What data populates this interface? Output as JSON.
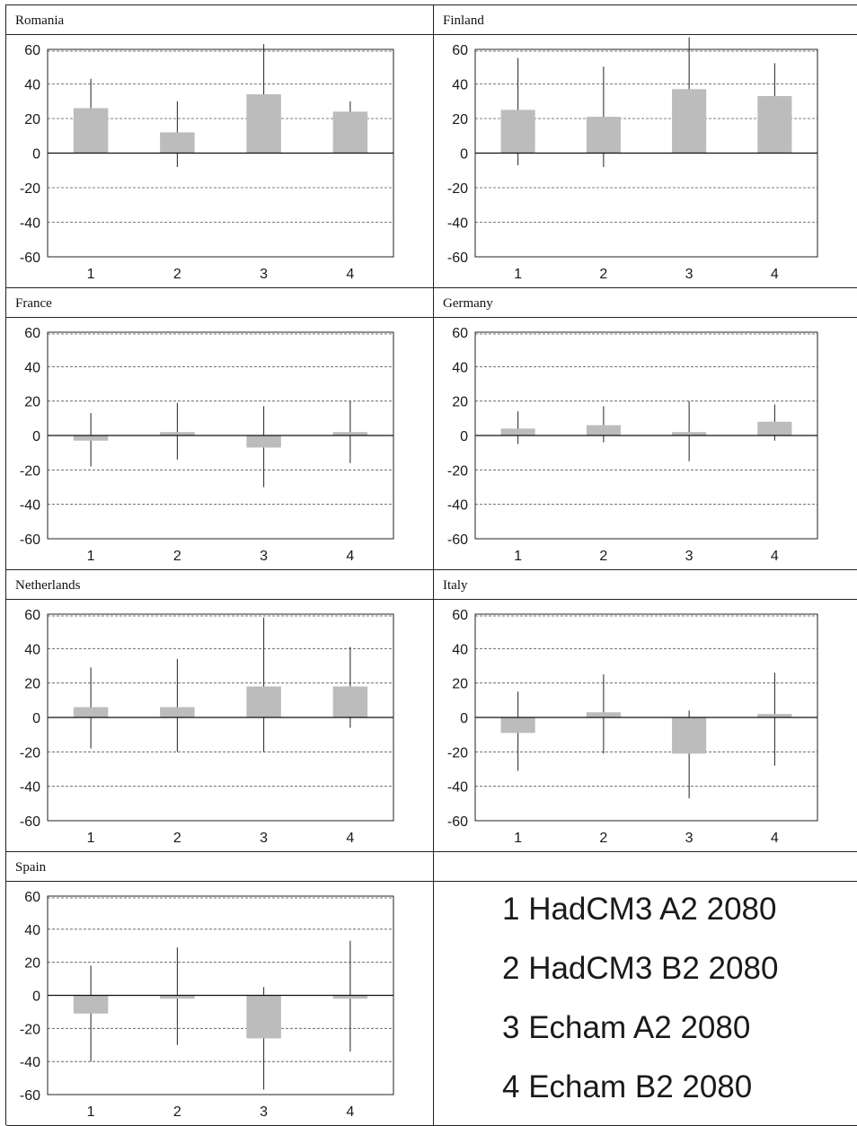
{
  "chart_data": [
    {
      "type": "bar",
      "title": "Romania",
      "categories": [
        "1",
        "2",
        "3",
        "4"
      ],
      "values": [
        26,
        12,
        34,
        24
      ],
      "error_low": [
        0,
        -8,
        0,
        0
      ],
      "error_high": [
        43,
        30,
        63,
        30
      ],
      "ylim": [
        -60,
        60
      ],
      "yticks": [
        60,
        40,
        20,
        0,
        -20,
        -40,
        -60
      ],
      "grid": true
    },
    {
      "type": "bar",
      "title": "Finland",
      "categories": [
        "1",
        "2",
        "3",
        "4"
      ],
      "values": [
        25,
        21,
        37,
        33
      ],
      "error_low": [
        -7,
        -8,
        0,
        0
      ],
      "error_high": [
        55,
        50,
        67,
        52
      ],
      "ylim": [
        -60,
        60
      ],
      "yticks": [
        60,
        40,
        20,
        0,
        -20,
        -40,
        -60
      ],
      "grid": true
    },
    {
      "type": "bar",
      "title": "France",
      "categories": [
        "1",
        "2",
        "3",
        "4"
      ],
      "values": [
        -3,
        2,
        -7,
        2
      ],
      "error_low": [
        -18,
        -14,
        -30,
        -16
      ],
      "error_high": [
        13,
        19,
        17,
        20
      ],
      "ylim": [
        -60,
        60
      ],
      "yticks": [
        60,
        40,
        20,
        0,
        -20,
        -40,
        -60
      ],
      "grid": true
    },
    {
      "type": "bar",
      "title": "Germany",
      "categories": [
        "1",
        "2",
        "3",
        "4"
      ],
      "values": [
        4,
        6,
        2,
        8
      ],
      "error_low": [
        -5,
        -4,
        -15,
        -3
      ],
      "error_high": [
        14,
        17,
        20,
        18
      ],
      "ylim": [
        -60,
        60
      ],
      "yticks": [
        60,
        40,
        20,
        0,
        -20,
        -40,
        -60
      ],
      "grid": true
    },
    {
      "type": "bar",
      "title": "Netherlands",
      "categories": [
        "1",
        "2",
        "3",
        "4"
      ],
      "values": [
        6,
        6,
        18,
        18
      ],
      "error_low": [
        -18,
        -20,
        -20,
        -6
      ],
      "error_high": [
        29,
        34,
        58,
        41
      ],
      "ylim": [
        -60,
        60
      ],
      "yticks": [
        60,
        40,
        20,
        0,
        -20,
        -40,
        -60
      ],
      "grid": true
    },
    {
      "type": "bar",
      "title": "Italy",
      "categories": [
        "1",
        "2",
        "3",
        "4"
      ],
      "values": [
        -9,
        3,
        -21,
        2
      ],
      "error_low": [
        -31,
        -21,
        -47,
        -28
      ],
      "error_high": [
        15,
        25,
        4,
        26
      ],
      "ylim": [
        -60,
        60
      ],
      "yticks": [
        60,
        40,
        20,
        0,
        -20,
        -40,
        -60
      ],
      "grid": true
    },
    {
      "type": "bar",
      "title": "Spain",
      "categories": [
        "1",
        "2",
        "3",
        "4"
      ],
      "values": [
        -11,
        -2,
        -26,
        -2
      ],
      "error_low": [
        -40,
        -30,
        -57,
        -34
      ],
      "error_high": [
        18,
        29,
        5,
        33
      ],
      "ylim": [
        -60,
        60
      ],
      "yticks": [
        60,
        40,
        20,
        0,
        -20,
        -40,
        -60
      ],
      "grid": true
    }
  ],
  "legend": [
    "1 HadCM3 A2 2080",
    "2 HadCM3 B2 2080",
    "3 Echam A2 2080",
    "4 Echam B2 2080"
  ],
  "colors": {
    "bar": "#bcbcbc",
    "whisker": "#222222",
    "gridline": "#555555"
  }
}
